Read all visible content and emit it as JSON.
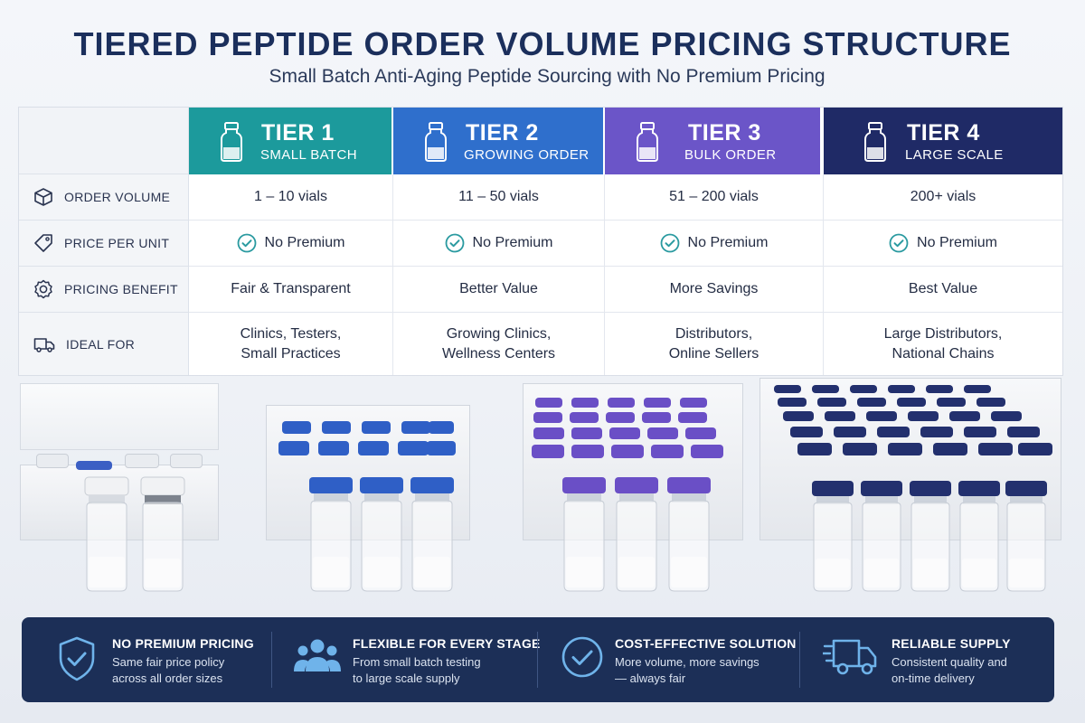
{
  "header": {
    "title": "TIERED PEPTIDE ORDER VOLUME PRICING STRUCTURE",
    "subtitle": "Small Batch Anti-Aging Peptide Sourcing with No Premium Pricing"
  },
  "colors": {
    "tier1": "#1c9a9c",
    "tier2": "#2f6fcc",
    "tier3": "#6b55c8",
    "tier4": "#1f2a66",
    "banner": "#1c2f57",
    "check": "#2a9aa0"
  },
  "tiers": [
    {
      "name": "TIER 1",
      "label": "SMALL BATCH",
      "icon": "vial-icon"
    },
    {
      "name": "TIER 2",
      "label": "GROWING ORDER",
      "icon": "vial-icon"
    },
    {
      "name": "TIER 3",
      "label": "BULK ORDER",
      "icon": "vial-icon"
    },
    {
      "name": "TIER 4",
      "label": "LARGE SCALE",
      "icon": "vial-icon"
    }
  ],
  "rows": [
    {
      "label": "ORDER VOLUME",
      "icon": "box-icon",
      "values": [
        "1 – 10 vials",
        "11 – 50 vials",
        "51 – 200 vials",
        "200+ vials"
      ]
    },
    {
      "label": "PRICE PER UNIT",
      "icon": "price-tag-icon",
      "values": [
        "No Premium",
        "No Premium",
        "No Premium",
        "No Premium"
      ]
    },
    {
      "label": "PRICING BENEFIT",
      "icon": "badge-icon",
      "values": [
        "Fair & Transparent",
        "Better Value",
        "More Savings",
        "Best Value"
      ]
    },
    {
      "label": "IDEAL FOR",
      "icon": "truck-icon",
      "values": [
        [
          "Clinics, Testers,",
          "Small Practices"
        ],
        [
          "Growing Clinics,",
          "Wellness Centers"
        ],
        [
          "Distributors,",
          "Online Sellers"
        ],
        [
          "Large Distributors,",
          "National Chains"
        ]
      ]
    }
  ],
  "features": [
    {
      "title": "NO PREMIUM PRICING",
      "desc": [
        "Same fair price policy",
        "across all order sizes"
      ],
      "icon": "shield-check-icon"
    },
    {
      "title": "FLEXIBLE FOR EVERY STAGE",
      "desc": [
        "From small batch testing",
        "to large scale supply"
      ],
      "icon": "people-icon"
    },
    {
      "title": "COST-EFFECTIVE SOLUTION",
      "desc": [
        "More volume, more savings",
        "— always fair"
      ],
      "icon": "check-circle-icon"
    },
    {
      "title": "RELIABLE SUPPLY",
      "desc": [
        "Consistent quality and",
        "on-time delivery"
      ],
      "icon": "delivery-truck-icon"
    }
  ]
}
